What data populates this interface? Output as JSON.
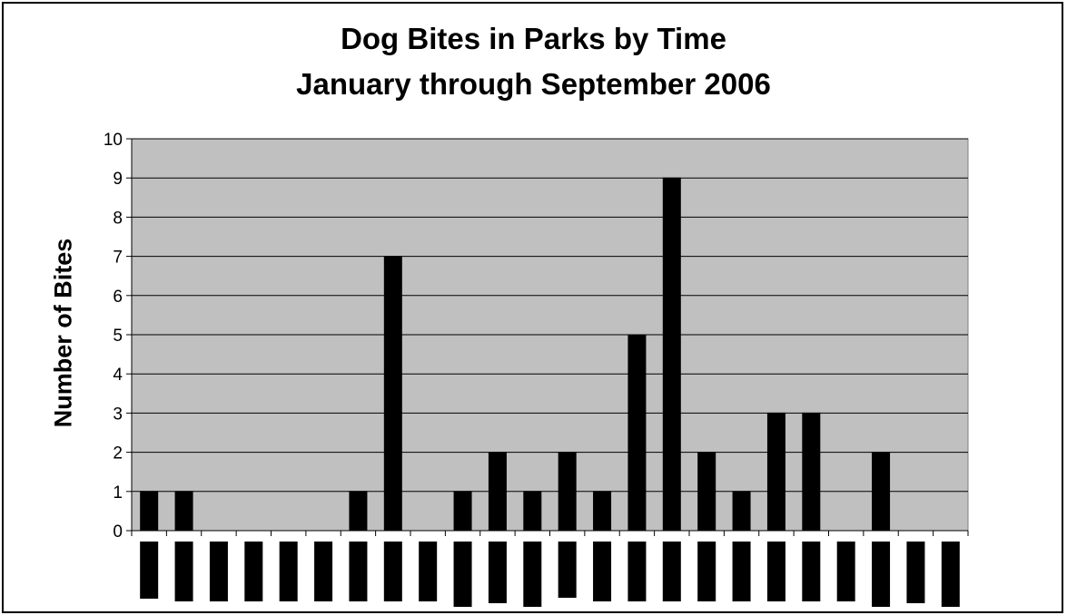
{
  "chart_data": {
    "type": "bar",
    "title": "Dog Bites in Parks by Time",
    "subtitle": "January through September 2006",
    "xlabel": "",
    "ylabel": "Number of Bites",
    "ylim": [
      0,
      10
    ],
    "yticks": [
      0,
      1,
      2,
      3,
      4,
      5,
      6,
      7,
      8,
      9,
      10
    ],
    "grid": true,
    "legend": "none",
    "categories": [
      "",
      "",
      "",
      "",
      "",
      "",
      "",
      "",
      "",
      "",
      "",
      "",
      "",
      "",
      "",
      "",
      "",
      "",
      "",
      "",
      "",
      "",
      "",
      ""
    ],
    "values": [
      1,
      1,
      0,
      0,
      0,
      0,
      1,
      7,
      0,
      1,
      2,
      1,
      2,
      1,
      5,
      9,
      2,
      1,
      3,
      3,
      0,
      2,
      0,
      0
    ],
    "colors": {
      "plot_bg": "#c0c0c0",
      "bar": "#000000",
      "grid": "#000000"
    }
  }
}
